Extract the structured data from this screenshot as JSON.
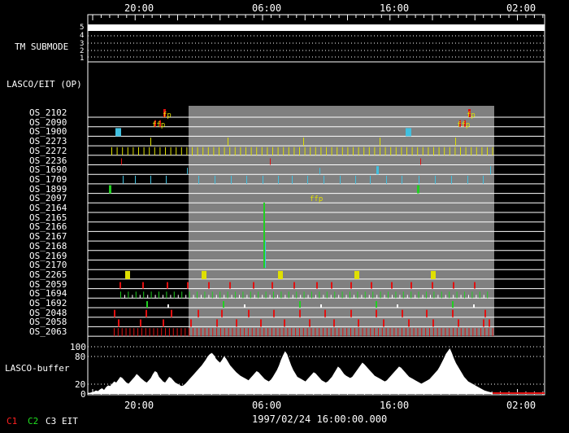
{
  "top_axis_labels": [
    "20:00",
    "06:00",
    "16:00",
    "02:00"
  ],
  "bottom_axis_labels": [
    "20:00",
    "06:00",
    "16:00",
    "02:00"
  ],
  "tm_submode": {
    "label": "TM SUBMODE",
    "levels": [
      "5",
      "4",
      "3",
      "2",
      "1"
    ]
  },
  "lasco_eit_label": "LASCO/EIT (OP)",
  "os_rows": [
    "OS_2102",
    "OS_2090",
    "OS_1900",
    "OS_2273",
    "OS_2272",
    "OS_2236",
    "OS_1690",
    "OS_1709",
    "OS_1899",
    "OS_2097",
    "OS_2164",
    "OS_2165",
    "OS_2166",
    "OS_2167",
    "OS_2168",
    "OS_2169",
    "OS_2170",
    "OS_2265",
    "OS_2059",
    "OS_1694",
    "OS_1692",
    "OS_2048",
    "OS_2058",
    "OS_2063"
  ],
  "event_labels": {
    "fp": "fp",
    "ffp": "ffp"
  },
  "lasco_buffer": {
    "label": "LASCO-buffer",
    "ticks": [
      "100",
      "80",
      "20",
      "0"
    ]
  },
  "legend": [
    {
      "label": "C1",
      "color": "#ff2020"
    },
    {
      "label": "C2",
      "color": "#20e020"
    },
    {
      "label": "C3",
      "color": "#ffffff"
    },
    {
      "label": "EIT",
      "color": "#ffffff"
    }
  ],
  "timestamp": "1997/02/24 16:00:00.000",
  "colors": {
    "shade": "#808080",
    "red": "#e01010",
    "yellow": "#e0e000",
    "cyan": "#40c0e0",
    "green": "#20d020"
  }
}
